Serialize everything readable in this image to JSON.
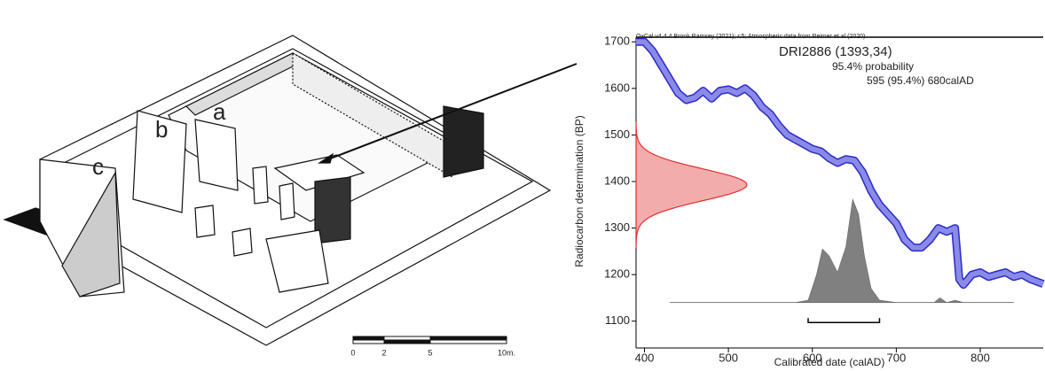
{
  "drawing": {
    "labels": [
      "a",
      "b",
      "c"
    ],
    "scale_labels": [
      "0",
      "2",
      "5",
      "10m."
    ]
  },
  "chart_data": {
    "type": "line",
    "header": "OxCal v4.4.4 Bronk Ramsey (2021); r:5; Atmospheric data from Reimer et al (2020)",
    "title": "DRI2886 (1393,34)",
    "annotations": [
      "95.4% probability",
      "595 (95.4%) 680calAD"
    ],
    "x_label": "Calibrated date (calAD)",
    "y_label": "Radiocarbon determination (BP)",
    "xlim": [
      390,
      875
    ],
    "ylim": [
      1050,
      1710
    ],
    "xticks": [
      400,
      500,
      600,
      700,
      800
    ],
    "yticks": [
      1100,
      1200,
      1300,
      1400,
      1500,
      1600,
      1700
    ],
    "measurement": {
      "mean": 1393,
      "error": 34,
      "color": "#e03030"
    },
    "range": [
      595,
      680
    ],
    "series": [
      {
        "color": "#2b2bc8",
        "x": [
          390,
          400,
          410,
          420,
          430,
          440,
          450,
          460,
          470,
          480,
          490,
          500,
          510,
          520,
          530,
          540,
          550,
          560,
          570,
          580,
          590,
          600,
          610,
          620,
          630,
          640,
          650,
          660,
          670,
          680,
          690,
          700,
          710,
          720,
          730,
          740,
          750,
          760,
          770,
          775,
          780,
          790,
          800,
          810,
          820,
          830,
          840,
          850,
          860,
          875
        ],
        "values": [
          1700,
          1700,
          1680,
          1650,
          1620,
          1590,
          1575,
          1580,
          1595,
          1578,
          1595,
          1598,
          1590,
          1600,
          1585,
          1560,
          1545,
          1520,
          1500,
          1490,
          1480,
          1470,
          1465,
          1450,
          1440,
          1448,
          1445,
          1420,
          1380,
          1350,
          1330,
          1310,
          1275,
          1258,
          1258,
          1275,
          1300,
          1292,
          1300,
          1190,
          1178,
          1200,
          1205,
          1195,
          1200,
          1205,
          1195,
          1200,
          1190,
          1180
        ]
      },
      {
        "color": "#808080",
        "x": [
          430,
          580,
          595,
          605,
          612,
          620,
          630,
          640,
          648,
          655,
          662,
          670,
          680,
          700,
          745,
          752,
          760,
          770,
          780,
          840
        ],
        "values": [
          1140,
          1140,
          1145,
          1200,
          1255,
          1240,
          1205,
          1260,
          1362,
          1330,
          1240,
          1170,
          1145,
          1140,
          1140,
          1150,
          1140,
          1145,
          1140,
          1140
        ]
      }
    ]
  }
}
